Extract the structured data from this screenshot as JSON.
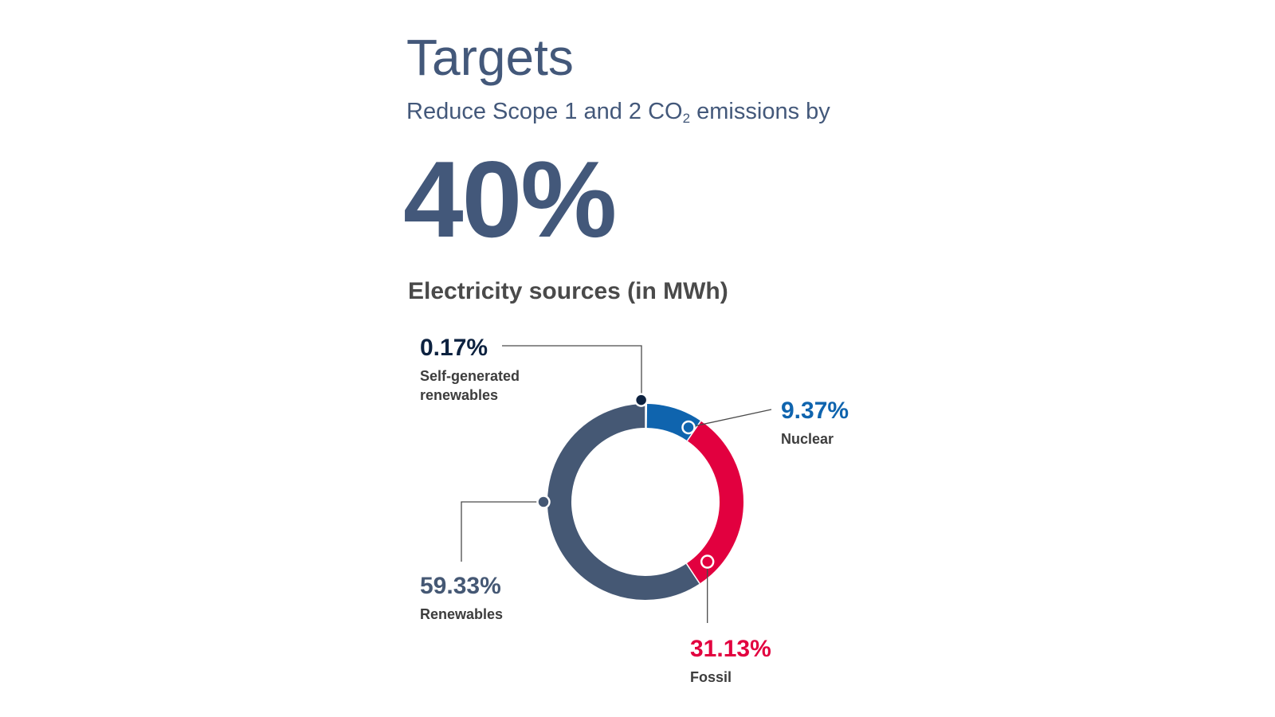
{
  "header": {
    "title": "Targets",
    "subtitle_pre": "Reduce Scope 1 and 2 CO",
    "subtitle_sub": "2",
    "subtitle_post": " emissions by",
    "big_value": "40%"
  },
  "chart_data": {
    "type": "pie",
    "title": "Electricity sources (in MWh)",
    "donut": true,
    "slices": [
      {
        "name_lines": [
          "Self-generated",
          "renewables"
        ],
        "value": 0.17,
        "label": "0.17%",
        "color": "#0d2240"
      },
      {
        "name_lines": [
          "Nuclear"
        ],
        "value": 9.37,
        "label": "9.37%",
        "color": "#0f64ae"
      },
      {
        "name_lines": [
          "Fossil"
        ],
        "value": 31.13,
        "label": "31.13%",
        "color": "#e2003f"
      },
      {
        "name_lines": [
          "Renewables"
        ],
        "value": 59.33,
        "label": "59.33%",
        "color": "#455874"
      }
    ]
  }
}
